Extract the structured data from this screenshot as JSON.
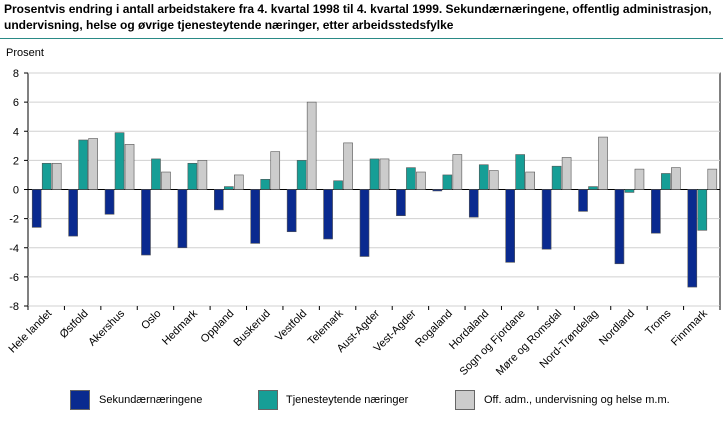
{
  "title": "Prosentvis endring i antall arbeidstakere fra 4. kvartal 1998 til 4. kvartal 1999. Sekundærnæringene, offentlig administrasjon, undervisning, helse og øvrige tjenesteytende næringer, etter arbeidsstedsfylke",
  "chart_data": {
    "type": "bar",
    "title": "Prosentvis endring i antall arbeidstakere fra 4. kvartal 1998 til 4. kvartal 1999. Sekundærnæringene, offentlig administrasjon, undervisning, helse og øvrige tjenesteytende næringer, etter arbeidsstedsfylke",
    "ylabel": "Prosent",
    "xlabel": "",
    "ylim": [
      -8,
      8
    ],
    "yticks": [
      -8,
      -6,
      -4,
      -2,
      0,
      2,
      4,
      6,
      8
    ],
    "grid": true,
    "categories": [
      "Hele landet",
      "Østfold",
      "Akershus",
      "Oslo",
      "Hedmark",
      "Oppland",
      "Buskerud",
      "Vestfold",
      "Telemark",
      "Aust-Agder",
      "Vest-Agder",
      "Rogaland",
      "Hordaland",
      "Sogn og Fjordane",
      "Møre og Romsdal",
      "Nord-Trøndelag",
      "Nordland",
      "Troms",
      "Finnmark"
    ],
    "series": [
      {
        "name": "Sekundærnæringene",
        "color": "#0a2a8f",
        "values": [
          -2.6,
          -3.2,
          -1.7,
          -4.5,
          -4.0,
          -1.4,
          -3.7,
          -2.9,
          -3.4,
          -4.6,
          -1.8,
          -0.1,
          -1.9,
          -5.0,
          -4.1,
          -1.5,
          -5.1,
          -3.0,
          -6.7
        ]
      },
      {
        "name": "Tjenesteytende næringer",
        "color": "#169e96",
        "values": [
          1.8,
          3.4,
          3.9,
          2.1,
          1.8,
          0.2,
          0.7,
          2.0,
          0.6,
          2.1,
          1.5,
          1.0,
          1.7,
          2.4,
          1.6,
          0.2,
          -0.2,
          1.1,
          -2.8
        ]
      },
      {
        "name": "Off. adm., undervisning og helse m.m.",
        "color": "#cccccc",
        "values": [
          1.8,
          3.5,
          3.1,
          1.2,
          2.0,
          1.0,
          2.6,
          6.0,
          3.2,
          2.1,
          1.2,
          2.4,
          1.3,
          1.2,
          2.2,
          3.6,
          1.4,
          1.5,
          1.4
        ]
      }
    ]
  }
}
